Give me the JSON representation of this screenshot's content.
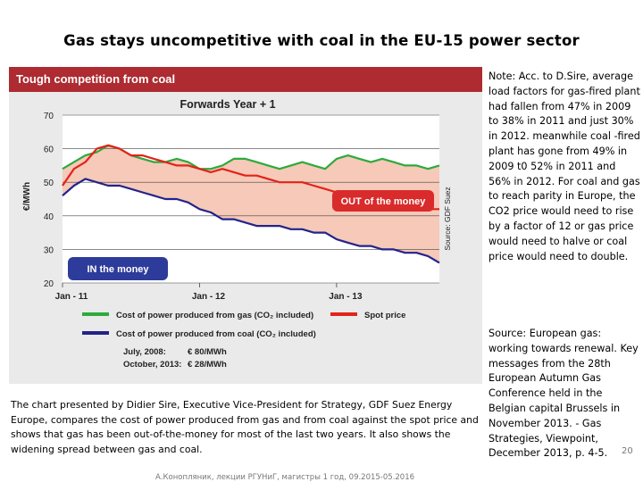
{
  "slide": {
    "title": "Gas stays uncompetitive with coal in the EU-15 power sector",
    "note": "Note: Acc. to D.Sire, average load factors for gas-fired plant had fallen from 47% in 2009 to 38% in 2011 and just 30% in 2012. meanwhile coal -fired plant has gone from 49% in 2009 t0 52% in 2011 and 56% in 2012. For coal and gas to reach parity in Europe, the CO2 price would need to rise by a factor of 12 or gas price would need to halve or coal price would need to double.",
    "source": "Source: European gas: working towards renewal. Key messages from the 28th European Autumn Gas Conference held in the Belgian capital Brussels in November 2013. - Gas Strategies, Viewpoint, December 2013, p. 4-5.",
    "caption": "The chart presented by Didier Sire, Executive Vice-President for Strategy, GDF Suez Energy Europe, compares the cost of power produced from gas and from coal against the spot price and shows that gas has been out-of-the-money for most of the last two years. It also shows the widening spread between gas and coal.",
    "footer": "А.Конопляник, лекции РГУНиГ, магистры 1 год, 09.2015-05.2016",
    "page_number": "20"
  },
  "chart_data": {
    "type": "line",
    "header": "Tough competition from coal",
    "title": "Forwards Year + 1",
    "ylabel": "€/MWh",
    "source_label": "Source: GDF Suez",
    "ylim": [
      20,
      70
    ],
    "yticks": [
      20,
      30,
      40,
      50,
      60,
      70
    ],
    "x_tick_labels": [
      "Jan - 11",
      "Jan - 12",
      "Jan - 13"
    ],
    "x_ticks_months": [
      0,
      12,
      24
    ],
    "x_range_months": [
      0,
      33
    ],
    "annotations": {
      "out": "OUT of the money",
      "in": "IN the money"
    },
    "colors": {
      "gas": "#2daa3c",
      "spot": "#e2231a",
      "coal": "#23238c",
      "fill": "#f6c9b8",
      "header": "#ad2b31"
    },
    "series": [
      {
        "name": "Cost of power produced from gas (CO₂ included)",
        "x_months": [
          0,
          1,
          2,
          3,
          4,
          5,
          6,
          7,
          8,
          9,
          10,
          11,
          12,
          13,
          14,
          15,
          16,
          17,
          18,
          19,
          20,
          21,
          22,
          23,
          24,
          25,
          26,
          27,
          28,
          29,
          30,
          31,
          32,
          33
        ],
        "values": [
          54,
          56,
          58,
          59,
          61,
          60,
          58,
          57,
          56,
          56,
          57,
          56,
          54,
          54,
          55,
          57,
          57,
          56,
          55,
          54,
          55,
          56,
          55,
          54,
          57,
          58,
          57,
          56,
          57,
          56,
          55,
          55,
          54,
          55
        ]
      },
      {
        "name": "Spot price",
        "x_months": [
          0,
          1,
          2,
          3,
          4,
          5,
          6,
          7,
          8,
          9,
          10,
          11,
          12,
          13,
          14,
          15,
          16,
          17,
          18,
          19,
          20,
          21,
          22,
          23,
          24,
          25,
          26,
          27,
          28,
          29,
          30,
          31,
          32,
          33
        ],
        "values": [
          49,
          54,
          56,
          60,
          61,
          60,
          58,
          58,
          57,
          56,
          55,
          55,
          54,
          53,
          54,
          53,
          52,
          52,
          51,
          50,
          50,
          50,
          49,
          48,
          47,
          46,
          45,
          45,
          44,
          43,
          43,
          43,
          42,
          42
        ]
      },
      {
        "name": "Cost of power produced from coal (CO₂ included)",
        "x_months": [
          0,
          1,
          2,
          3,
          4,
          5,
          6,
          7,
          8,
          9,
          10,
          11,
          12,
          13,
          14,
          15,
          16,
          17,
          18,
          19,
          20,
          21,
          22,
          23,
          24,
          25,
          26,
          27,
          28,
          29,
          30,
          31,
          32,
          33
        ],
        "values": [
          46,
          49,
          51,
          50,
          49,
          49,
          48,
          47,
          46,
          45,
          45,
          44,
          42,
          41,
          39,
          39,
          38,
          37,
          37,
          37,
          36,
          36,
          35,
          35,
          33,
          32,
          31,
          31,
          30,
          30,
          29,
          29,
          28,
          26
        ]
      }
    ],
    "legend_notes": [
      {
        "label": "July, 2008:",
        "value": "€ 80/MWh"
      },
      {
        "label": "October, 2013:",
        "value": "€ 28/MWh"
      }
    ]
  }
}
